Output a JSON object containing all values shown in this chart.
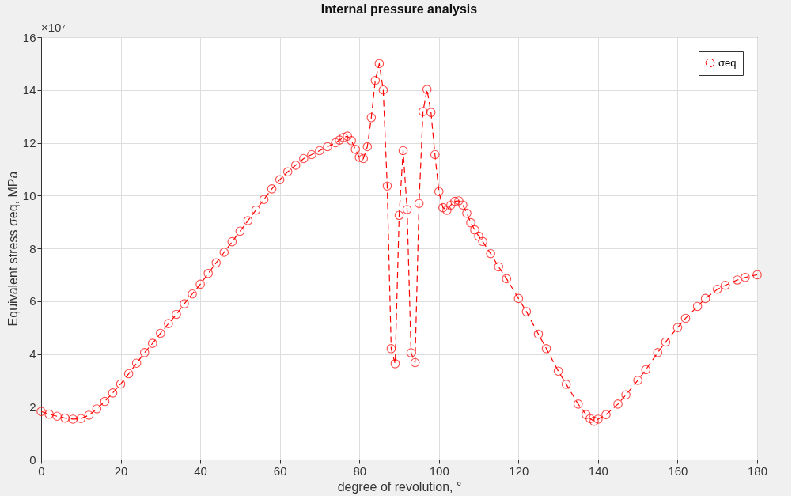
{
  "chart_data": {
    "type": "line",
    "title": "Internal pressure analysis",
    "xlabel": "degree of revolution, °",
    "ylabel": "Equivalent stress σeq, MPa",
    "annotations": [
      "×10⁷"
    ],
    "xlim": [
      0,
      180
    ],
    "xticks": [
      0,
      20,
      40,
      60,
      80,
      100,
      120,
      140,
      160,
      180
    ],
    "ylim": [
      0,
      16
    ],
    "yticks": [
      0,
      2,
      4,
      6,
      8,
      10,
      12,
      14,
      16
    ],
    "grid": true,
    "legend": "top right",
    "marker": "circle",
    "line_style": "dashed",
    "series": [
      {
        "name": "σeq",
        "color": "#ff0000",
        "x": [
          0,
          2,
          4,
          6,
          8,
          10,
          12,
          14,
          16,
          18,
          20,
          22,
          24,
          26,
          28,
          30,
          32,
          34,
          36,
          38,
          40,
          42,
          44,
          46,
          48,
          50,
          52,
          54,
          56,
          58,
          60,
          62,
          64,
          66,
          68,
          70,
          72,
          74,
          75,
          76,
          77,
          78,
          79,
          80,
          81,
          82,
          83,
          84,
          85,
          86,
          87,
          88,
          89,
          90,
          91,
          92,
          93,
          94,
          95,
          96,
          97,
          98,
          99,
          100,
          101,
          102,
          103,
          104,
          105,
          106,
          107,
          108,
          109,
          110,
          111,
          113,
          115,
          117,
          120,
          122,
          125,
          127,
          130,
          132,
          135,
          137,
          138,
          139,
          140,
          142,
          145,
          147,
          150,
          152,
          155,
          157,
          160,
          162,
          165,
          167,
          170,
          172,
          175,
          177,
          180
        ],
        "values": [
          1.82,
          1.72,
          1.64,
          1.57,
          1.53,
          1.55,
          1.68,
          1.92,
          2.2,
          2.52,
          2.86,
          3.25,
          3.65,
          4.05,
          4.4,
          4.78,
          5.15,
          5.5,
          5.9,
          6.27,
          6.64,
          7.05,
          7.45,
          7.85,
          8.25,
          8.65,
          9.05,
          9.45,
          9.85,
          10.25,
          10.6,
          10.9,
          11.15,
          11.4,
          11.55,
          11.7,
          11.85,
          12.0,
          12.1,
          12.2,
          12.25,
          12.08,
          11.75,
          11.45,
          11.4,
          11.85,
          12.95,
          14.36,
          15.0,
          14.0,
          10.36,
          4.2,
          3.63,
          9.25,
          11.7,
          9.47,
          4.04,
          3.67,
          9.7,
          13.18,
          14.02,
          13.15,
          11.55,
          10.15,
          9.54,
          9.44,
          9.64,
          9.78,
          9.8,
          9.64,
          9.33,
          8.97,
          8.7,
          8.46,
          8.26,
          7.8,
          7.3,
          6.85,
          6.1,
          5.6,
          4.75,
          4.2,
          3.35,
          2.85,
          2.1,
          1.7,
          1.55,
          1.45,
          1.53,
          1.7,
          2.1,
          2.45,
          3.0,
          3.4,
          4.05,
          4.45,
          5.0,
          5.35,
          5.8,
          6.1,
          6.45,
          6.6,
          6.8,
          6.9,
          7.0
        ]
      }
    ]
  }
}
